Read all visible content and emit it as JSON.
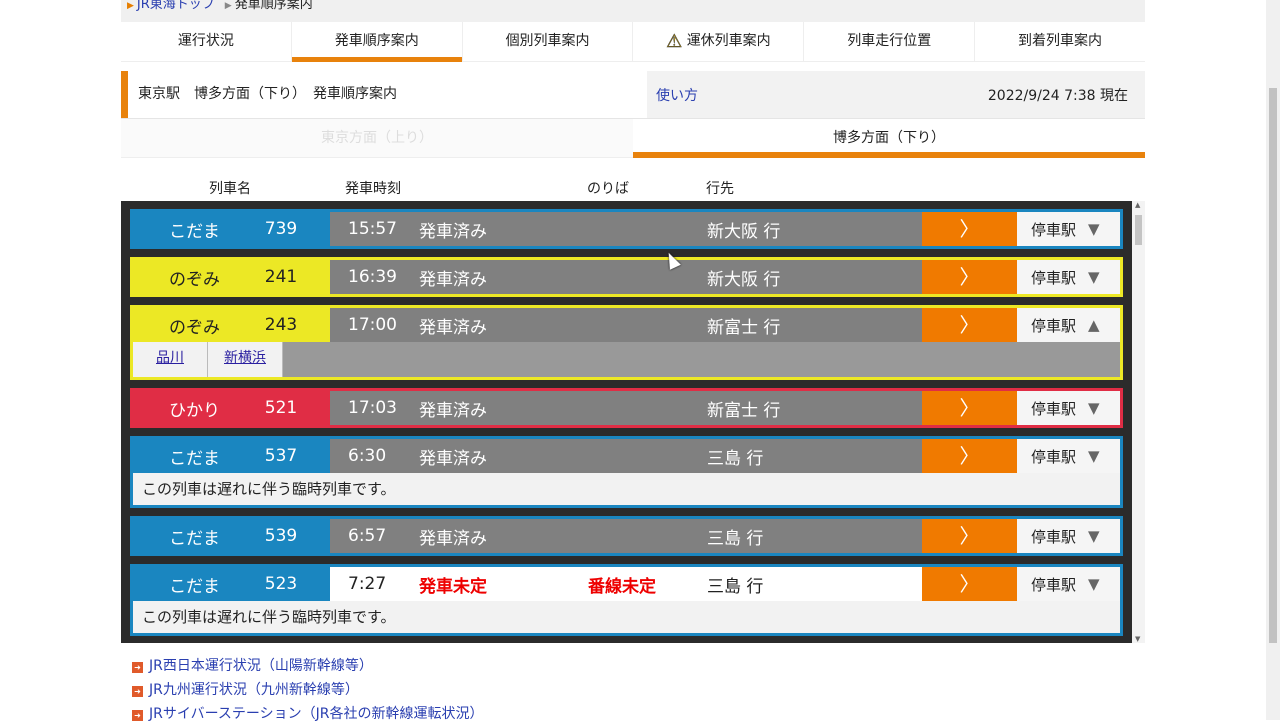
{
  "breadcrumb": [
    "JR東海トップ",
    "発車順序案内"
  ],
  "tabs": [
    {
      "label": "運行状況"
    },
    {
      "label": "発車順序案内",
      "active": true
    },
    {
      "label": "個別列車案内"
    },
    {
      "label": "運休列車案内",
      "icon": "warning-icon"
    },
    {
      "label": "列車走行位置"
    },
    {
      "label": "到着列車案内"
    }
  ],
  "info": {
    "title": "東京駅　博多方面（下り）　発車順序案内",
    "help": "使い方",
    "timestamp": "2022/9/24 7:38 現在"
  },
  "directions": [
    {
      "label": "東京方面（上り）",
      "active": false
    },
    {
      "label": "博多方面（下り）",
      "active": true
    }
  ],
  "columns": {
    "name": "列車名",
    "time": "発車時刻",
    "platform": "のりば",
    "dest": "行先"
  },
  "stop_label": "停車駅",
  "colors": {
    "kodama": "#1a86c0",
    "nozomi": "#ece825",
    "hikari": "#e02d45",
    "accent": "#e8820c"
  },
  "trains": [
    {
      "type": "こだま",
      "num": "739",
      "time": "15:57",
      "status": "発車済み",
      "platform": "",
      "dest": "新大阪 行",
      "color": "#1a86c0",
      "textColor": "#fff"
    },
    {
      "type": "のぞみ",
      "num": "241",
      "time": "16:39",
      "status": "発車済み",
      "platform": "",
      "dest": "新大阪 行",
      "color": "#ece825",
      "textColor": "#222"
    },
    {
      "type": "のぞみ",
      "num": "243",
      "time": "17:00",
      "status": "発車済み",
      "platform": "",
      "dest": "新富士 行",
      "color": "#ece825",
      "textColor": "#222",
      "expanded": true,
      "stops": [
        "品川",
        "新横浜"
      ]
    },
    {
      "type": "ひかり",
      "num": "521",
      "time": "17:03",
      "status": "発車済み",
      "platform": "",
      "dest": "新富士 行",
      "color": "#e02d45",
      "textColor": "#fff"
    },
    {
      "type": "こだま",
      "num": "537",
      "time": "6:30",
      "status": "発車済み",
      "platform": "",
      "dest": "三島 行",
      "color": "#1a86c0",
      "textColor": "#fff",
      "note": "この列車は遅れに伴う臨時列車です。"
    },
    {
      "type": "こだま",
      "num": "539",
      "time": "6:57",
      "status": "発車済み",
      "platform": "",
      "dest": "三島 行",
      "color": "#1a86c0",
      "textColor": "#fff"
    },
    {
      "type": "こだま",
      "num": "523",
      "time": "7:27",
      "status": "発車未定",
      "platform": "番線未定",
      "dest": "三島 行",
      "color": "#1a86c0",
      "textColor": "#fff",
      "undecided": true,
      "note": "この列車は遅れに伴う臨時列車です。"
    }
  ],
  "links": [
    "JR西日本運行状況（山陽新幹線等）",
    "JR九州運行状況（九州新幹線等）",
    "JRサイバーステーション（JR各社の新幹線運転状況）"
  ]
}
